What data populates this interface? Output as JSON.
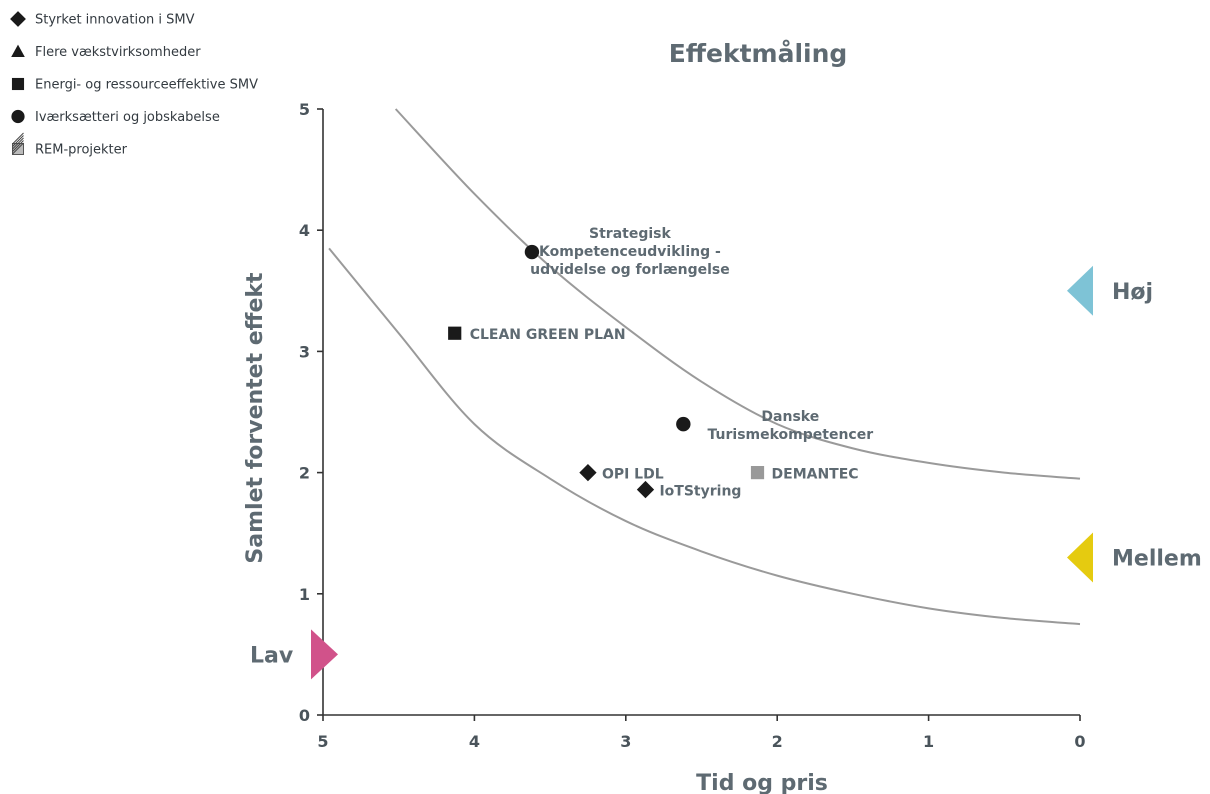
{
  "legend": [
    {
      "symbol": "diamond",
      "label": "Styrket innovation i SMV"
    },
    {
      "symbol": "triangle",
      "label": "Flere vækstvirksomheder"
    },
    {
      "symbol": "square",
      "label": "Energi- og ressourceeffektive SMV"
    },
    {
      "symbol": "circle",
      "label": "Iværksætteri og jobskabelse"
    },
    {
      "symbol": "hatched",
      "label": "REM-projekter"
    }
  ],
  "levels": [
    {
      "label": "Høj",
      "color": "#7ec3d6",
      "y": 3.5,
      "side": "right"
    },
    {
      "label": "Mellem",
      "color": "#e5cb10",
      "y": 1.3,
      "side": "right"
    },
    {
      "label": "Lav",
      "color": "#d1528a",
      "y": 0.5,
      "side": "left"
    }
  ],
  "chart_data": {
    "type": "scatter",
    "title": "Effektmåling",
    "xlabel": "Tid og pris",
    "ylabel": "Samlet forventet effekt",
    "xlim": [
      5,
      0
    ],
    "ylim": [
      0,
      5
    ],
    "x_reversed": true,
    "xticks": [
      "5",
      "4",
      "3",
      "2",
      "1",
      "0"
    ],
    "yticks": [
      "0",
      "1",
      "2",
      "3",
      "4",
      "5"
    ],
    "grid": false,
    "points": [
      {
        "label": [
          "Strategisk",
          "Kompetenceudvikling -",
          "udvidelse og forlængelse"
        ],
        "x": 3.62,
        "y": 3.82,
        "symbol": "circle",
        "color": "#1a1a1a"
      },
      {
        "label": [
          "CLEAN GREEN PLAN"
        ],
        "x": 4.13,
        "y": 3.15,
        "symbol": "square",
        "color": "#1a1a1a"
      },
      {
        "label": [
          "Danske",
          "Turismekompetencer"
        ],
        "x": 2.62,
        "y": 2.4,
        "symbol": "circle",
        "color": "#1a1a1a"
      },
      {
        "label": [
          "OPI LDL"
        ],
        "x": 3.25,
        "y": 2.0,
        "symbol": "diamond",
        "color": "#1a1a1a"
      },
      {
        "label": [
          "DEMANTEC"
        ],
        "x": 2.13,
        "y": 2.0,
        "symbol": "square",
        "color": "#999999"
      },
      {
        "label": [
          "IoTStyring"
        ],
        "x": 2.87,
        "y": 1.86,
        "symbol": "diamond",
        "color": "#1a1a1a"
      }
    ],
    "curves": [
      {
        "name": "upper",
        "points": [
          [
            4.52,
            5.0
          ],
          [
            4.0,
            4.3
          ],
          [
            3.5,
            3.7
          ],
          [
            3.0,
            3.2
          ],
          [
            2.5,
            2.75
          ],
          [
            2.0,
            2.4
          ],
          [
            1.5,
            2.2
          ],
          [
            1.0,
            2.08
          ],
          [
            0.5,
            2.0
          ],
          [
            0,
            1.95
          ]
        ]
      },
      {
        "name": "lower",
        "points": [
          [
            4.96,
            3.85
          ],
          [
            4.5,
            3.15
          ],
          [
            4.0,
            2.4
          ],
          [
            3.5,
            1.95
          ],
          [
            3.0,
            1.6
          ],
          [
            2.5,
            1.35
          ],
          [
            2.0,
            1.15
          ],
          [
            1.5,
            1.0
          ],
          [
            1.0,
            0.88
          ],
          [
            0.5,
            0.8
          ],
          [
            0,
            0.75
          ]
        ]
      }
    ]
  }
}
